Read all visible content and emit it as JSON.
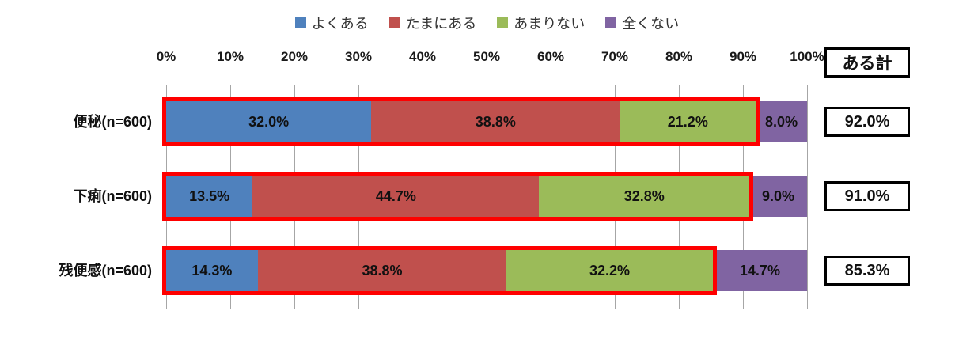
{
  "chart_data": {
    "type": "bar",
    "orientation": "horizontal",
    "stacked": true,
    "title": "",
    "categories": [
      "便秘(n=600)",
      "下痢(n=600)",
      "残便感(n=600)"
    ],
    "series": [
      {
        "name": "よくある",
        "color": "#4f81bd",
        "values": [
          32.0,
          13.5,
          14.3
        ]
      },
      {
        "name": "たまにある",
        "color": "#c0504d",
        "values": [
          38.8,
          44.7,
          38.8
        ]
      },
      {
        "name": "あまりない",
        "color": "#9bbb59",
        "values": [
          21.2,
          32.8,
          32.2
        ]
      },
      {
        "name": "全くない",
        "color": "#8064a2",
        "values": [
          8.0,
          9.0,
          14.7
        ]
      }
    ],
    "x_ticks": [
      "0%",
      "10%",
      "20%",
      "30%",
      "40%",
      "50%",
      "60%",
      "70%",
      "80%",
      "90%",
      "100%"
    ],
    "xlim": [
      0,
      100
    ],
    "grid": true,
    "legend_position": "top",
    "totals_column": {
      "header": "ある計",
      "values": [
        "92.0%",
        "91.0%",
        "85.3%"
      ]
    },
    "highlight_boxes": {
      "color": "#fe0000",
      "covers_series": [
        "よくある",
        "たまにある",
        "あまりない"
      ],
      "extents_pct": [
        92.0,
        91.0,
        85.3
      ]
    }
  }
}
